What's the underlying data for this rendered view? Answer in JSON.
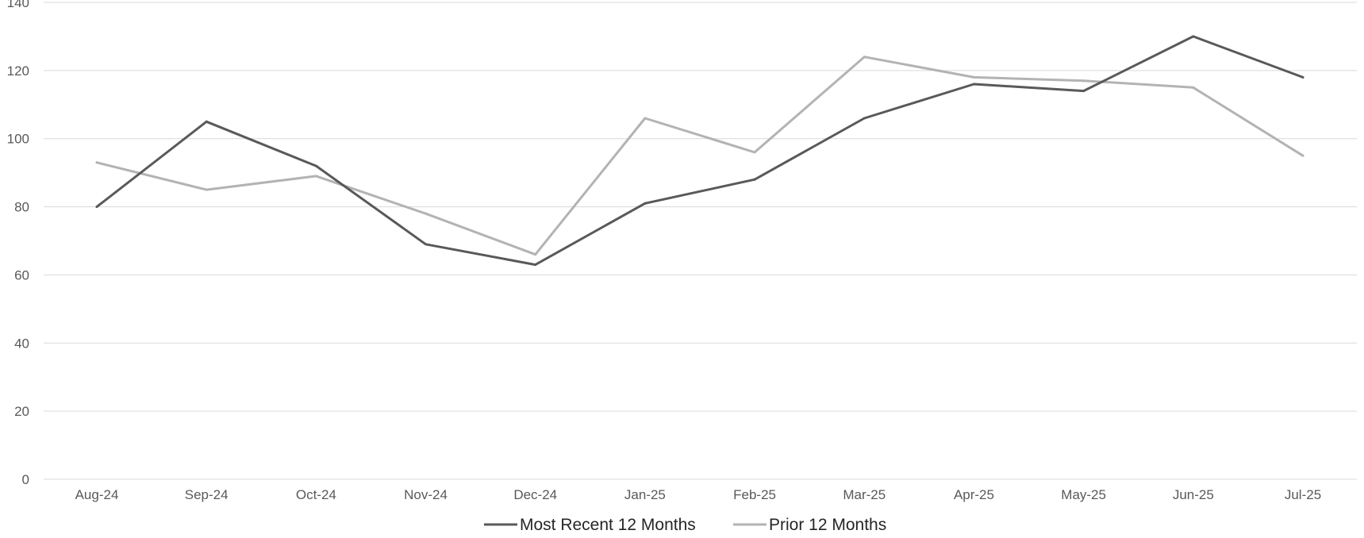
{
  "chart_data": {
    "type": "line",
    "title": "",
    "xlabel": "",
    "ylabel": "",
    "categories": [
      "Aug-24",
      "Sep-24",
      "Oct-24",
      "Nov-24",
      "Dec-24",
      "Jan-25",
      "Feb-25",
      "Mar-25",
      "Apr-25",
      "May-25",
      "Jun-25",
      "Jul-25"
    ],
    "ylim": [
      0,
      140
    ],
    "yticks": [
      0,
      20,
      40,
      60,
      80,
      100,
      120,
      140
    ],
    "grid": true,
    "legend_position": "bottom",
    "series": [
      {
        "name": "Most Recent 12 Months",
        "color": "#595959",
        "values": [
          80,
          105,
          92,
          69,
          63,
          81,
          88,
          106,
          116,
          114,
          130,
          118
        ]
      },
      {
        "name": "Prior 12 Months",
        "color": "#b3b3b3",
        "values": [
          93,
          85,
          89,
          78,
          66,
          106,
          96,
          124,
          118,
          117,
          115,
          95
        ]
      }
    ]
  }
}
